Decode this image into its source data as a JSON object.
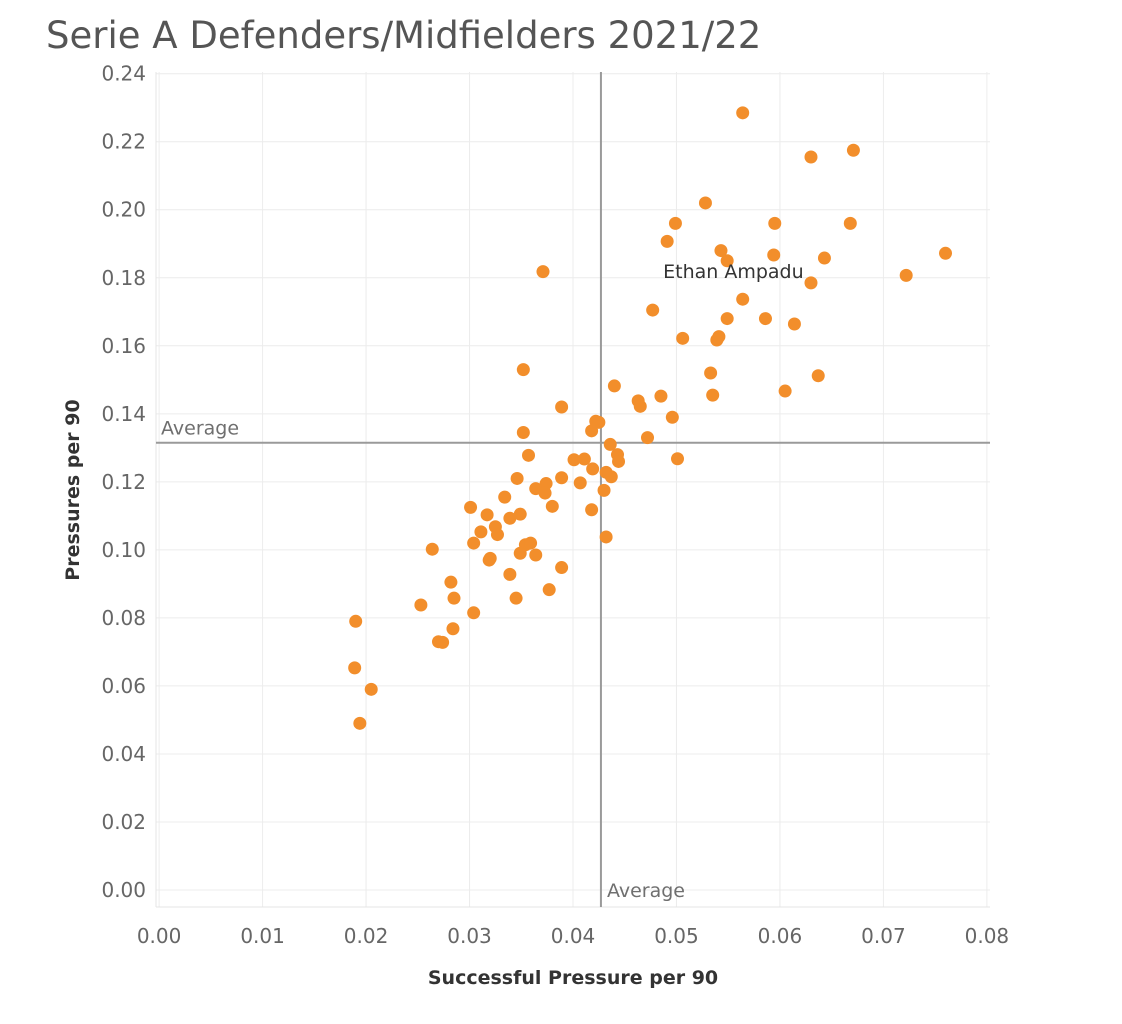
{
  "chart_data": {
    "type": "scatter",
    "title": "Serie A Defenders/Midfielders 2021/22",
    "xlabel": "Successful Pressure per 90",
    "ylabel": "Pressures per 90",
    "xlim": [
      -0.0003,
      0.0803
    ],
    "ylim": [
      -0.005,
      0.2405
    ],
    "x_ticks": [
      "0.00",
      "0.01",
      "0.02",
      "0.03",
      "0.04",
      "0.05",
      "0.06",
      "0.07",
      "0.08"
    ],
    "y_ticks": [
      "0.00",
      "0.02",
      "0.04",
      "0.06",
      "0.08",
      "0.10",
      "0.12",
      "0.14",
      "0.16",
      "0.18",
      "0.20",
      "0.22",
      "0.24"
    ],
    "grid": true,
    "marker_color": "#F28E2B",
    "reference_lines": [
      {
        "axis": "x",
        "value": 0.0427,
        "label": "Average"
      },
      {
        "axis": "y",
        "value": 0.1315,
        "label": "Average"
      }
    ],
    "annotations": [
      {
        "text": "Ethan Ampadu",
        "x": 0.0555,
        "y": 0.18
      }
    ],
    "points": [
      {
        "x": 0.0564,
        "y": 0.2285
      },
      {
        "x": 0.063,
        "y": 0.2155
      },
      {
        "x": 0.0671,
        "y": 0.2175
      },
      {
        "x": 0.0528,
        "y": 0.202
      },
      {
        "x": 0.0499,
        "y": 0.196
      },
      {
        "x": 0.0595,
        "y": 0.196
      },
      {
        "x": 0.0668,
        "y": 0.196
      },
      {
        "x": 0.0491,
        "y": 0.1907
      },
      {
        "x": 0.0543,
        "y": 0.188
      },
      {
        "x": 0.0594,
        "y": 0.1867
      },
      {
        "x": 0.0549,
        "y": 0.185
      },
      {
        "x": 0.0643,
        "y": 0.1858
      },
      {
        "x": 0.076,
        "y": 0.1872
      },
      {
        "x": 0.0722,
        "y": 0.1807
      },
      {
        "x": 0.063,
        "y": 0.1785
      },
      {
        "x": 0.0371,
        "y": 0.1818
      },
      {
        "x": 0.0564,
        "y": 0.1737
      },
      {
        "x": 0.0477,
        "y": 0.1705
      },
      {
        "x": 0.0549,
        "y": 0.168
      },
      {
        "x": 0.0586,
        "y": 0.168
      },
      {
        "x": 0.0614,
        "y": 0.1664
      },
      {
        "x": 0.0506,
        "y": 0.1622
      },
      {
        "x": 0.0541,
        "y": 0.1627
      },
      {
        "x": 0.0539,
        "y": 0.1617
      },
      {
        "x": 0.0352,
        "y": 0.153
      },
      {
        "x": 0.0533,
        "y": 0.152
      },
      {
        "x": 0.0637,
        "y": 0.1512
      },
      {
        "x": 0.044,
        "y": 0.1482
      },
      {
        "x": 0.0535,
        "y": 0.1455
      },
      {
        "x": 0.0605,
        "y": 0.1467
      },
      {
        "x": 0.0485,
        "y": 0.1452
      },
      {
        "x": 0.0463,
        "y": 0.1438
      },
      {
        "x": 0.0465,
        "y": 0.1422
      },
      {
        "x": 0.0389,
        "y": 0.142
      },
      {
        "x": 0.0496,
        "y": 0.139
      },
      {
        "x": 0.0422,
        "y": 0.1378
      },
      {
        "x": 0.0425,
        "y": 0.1375
      },
      {
        "x": 0.0418,
        "y": 0.135
      },
      {
        "x": 0.0352,
        "y": 0.1345
      },
      {
        "x": 0.0472,
        "y": 0.133
      },
      {
        "x": 0.0436,
        "y": 0.131
      },
      {
        "x": 0.0357,
        "y": 0.1278
      },
      {
        "x": 0.0443,
        "y": 0.128
      },
      {
        "x": 0.0401,
        "y": 0.1265
      },
      {
        "x": 0.0411,
        "y": 0.1267
      },
      {
        "x": 0.0444,
        "y": 0.126
      },
      {
        "x": 0.0501,
        "y": 0.1268
      },
      {
        "x": 0.0419,
        "y": 0.1238
      },
      {
        "x": 0.0432,
        "y": 0.1228
      },
      {
        "x": 0.0437,
        "y": 0.1215
      },
      {
        "x": 0.0346,
        "y": 0.121
      },
      {
        "x": 0.0389,
        "y": 0.1212
      },
      {
        "x": 0.0374,
        "y": 0.1195
      },
      {
        "x": 0.0407,
        "y": 0.1197
      },
      {
        "x": 0.0364,
        "y": 0.118
      },
      {
        "x": 0.0373,
        "y": 0.1167
      },
      {
        "x": 0.043,
        "y": 0.1175
      },
      {
        "x": 0.0334,
        "y": 0.1155
      },
      {
        "x": 0.0301,
        "y": 0.1125
      },
      {
        "x": 0.038,
        "y": 0.1128
      },
      {
        "x": 0.0418,
        "y": 0.1118
      },
      {
        "x": 0.0317,
        "y": 0.1103
      },
      {
        "x": 0.0349,
        "y": 0.1105
      },
      {
        "x": 0.0339,
        "y": 0.1093
      },
      {
        "x": 0.0325,
        "y": 0.1068
      },
      {
        "x": 0.0311,
        "y": 0.1053
      },
      {
        "x": 0.0327,
        "y": 0.1045
      },
      {
        "x": 0.0432,
        "y": 0.1038
      },
      {
        "x": 0.0304,
        "y": 0.102
      },
      {
        "x": 0.0354,
        "y": 0.1015
      },
      {
        "x": 0.0359,
        "y": 0.102
      },
      {
        "x": 0.0264,
        "y": 0.1002
      },
      {
        "x": 0.0349,
        "y": 0.099
      },
      {
        "x": 0.0364,
        "y": 0.0985
      },
      {
        "x": 0.0319,
        "y": 0.097
      },
      {
        "x": 0.032,
        "y": 0.0975
      },
      {
        "x": 0.0389,
        "y": 0.0948
      },
      {
        "x": 0.0339,
        "y": 0.0928
      },
      {
        "x": 0.0282,
        "y": 0.0905
      },
      {
        "x": 0.0377,
        "y": 0.0883
      },
      {
        "x": 0.0285,
        "y": 0.0858
      },
      {
        "x": 0.0345,
        "y": 0.0858
      },
      {
        "x": 0.0253,
        "y": 0.0838
      },
      {
        "x": 0.0304,
        "y": 0.0815
      },
      {
        "x": 0.019,
        "y": 0.079
      },
      {
        "x": 0.0284,
        "y": 0.0768
      },
      {
        "x": 0.027,
        "y": 0.073
      },
      {
        "x": 0.0274,
        "y": 0.0728
      },
      {
        "x": 0.0189,
        "y": 0.0653
      },
      {
        "x": 0.0205,
        "y": 0.059
      },
      {
        "x": 0.0194,
        "y": 0.049
      }
    ]
  }
}
